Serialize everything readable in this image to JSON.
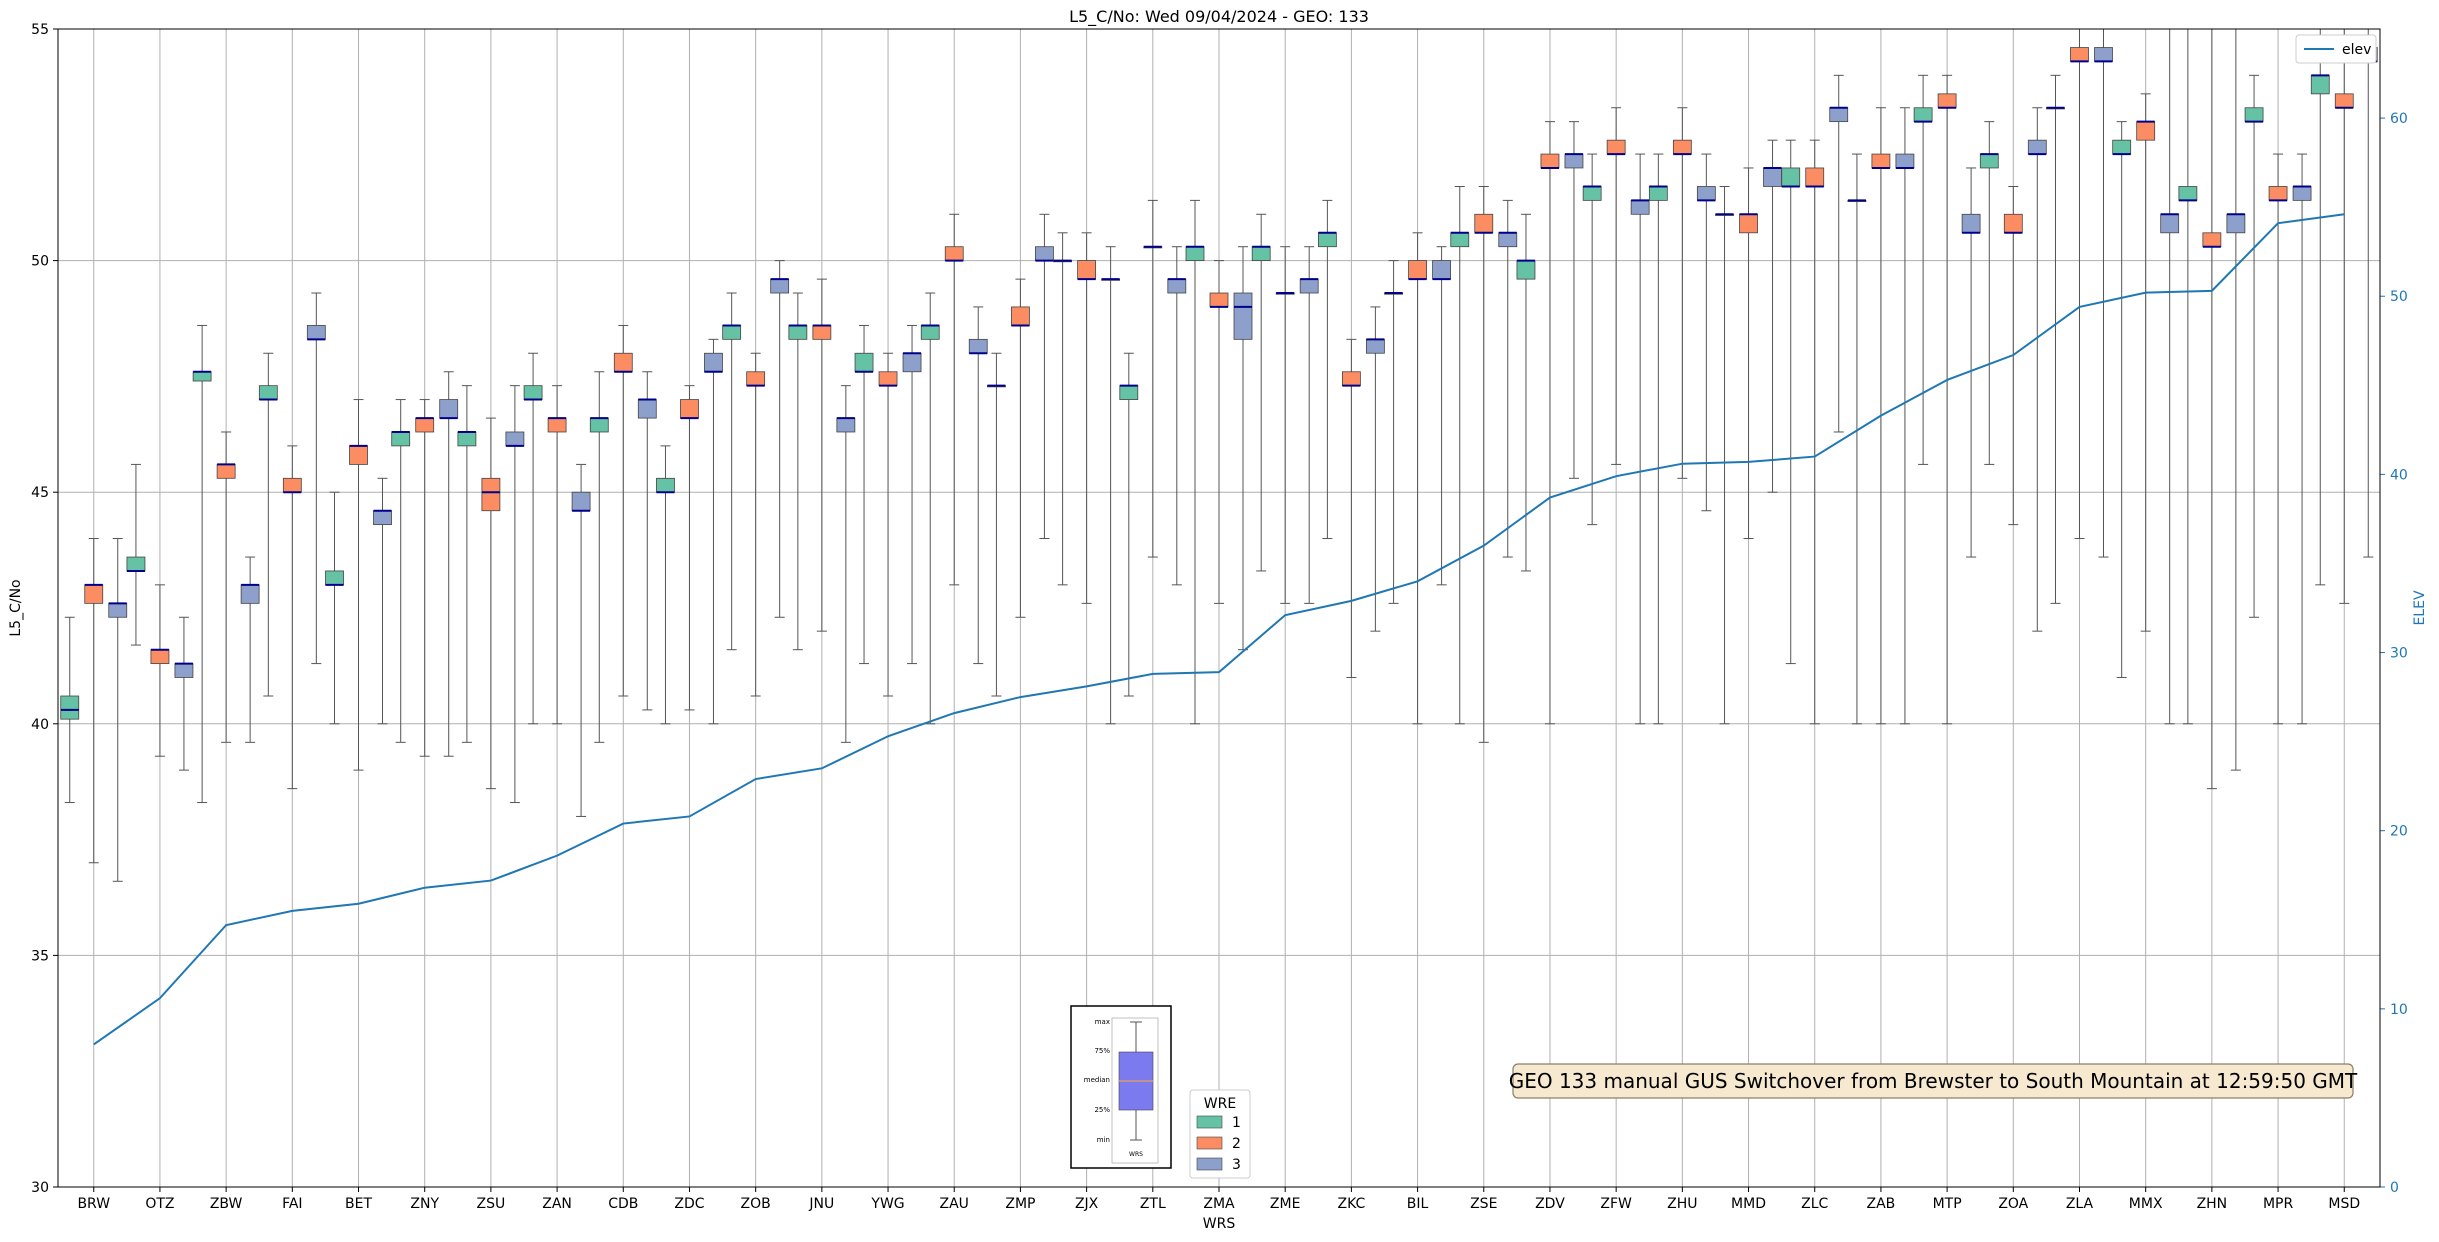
{
  "chart_data": {
    "type": "box",
    "title": "L5_C/No: Wed 09/04/2024 - GEO: 133",
    "xlabel": "WRS",
    "ylabel": "L5_C/No",
    "y2label": "ELEV",
    "ylim": [
      30,
      55
    ],
    "y2lim": [
      0,
      65
    ],
    "yticks": [
      "30",
      "35",
      "40",
      "45",
      "50",
      "55"
    ],
    "y2ticks": [
      "0",
      "10",
      "20",
      "30",
      "40",
      "50",
      "60"
    ],
    "grid": true,
    "categories": [
      "BRW",
      "OTZ",
      "ZBW",
      "FAI",
      "BET",
      "ZNY",
      "ZSU",
      "ZAN",
      "CDB",
      "ZDC",
      "ZOB",
      "JNU",
      "YWG",
      "ZAU",
      "ZMP",
      "ZJX",
      "ZTL",
      "ZMA",
      "ZME",
      "ZKC",
      "BIL",
      "ZSE",
      "ZDV",
      "ZFW",
      "ZHU",
      "MMD",
      "ZLC",
      "ZAB",
      "MTP",
      "ZOA",
      "ZLA",
      "MMX",
      "ZHN",
      "MPR",
      "MSD"
    ],
    "legend": {
      "title": "WRE",
      "placement": "bottom-center",
      "entries": [
        {
          "label": "1",
          "color": "#66c2a5"
        },
        {
          "label": "2",
          "color": "#fc8d62"
        },
        {
          "label": "3",
          "color": "#8da0cb"
        }
      ]
    },
    "elev_legend": {
      "label": "elev",
      "placement": "top-right",
      "color": "#1f77b4"
    },
    "elev": [
      8,
      10.6,
      14.7,
      15.5,
      15.9,
      16.8,
      17.2,
      18.6,
      20.4,
      20.8,
      22.9,
      23.5,
      25.3,
      26.6,
      27.5,
      28.1,
      28.8,
      28.9,
      32.1,
      32.9,
      34,
      36,
      38.7,
      39.9,
      40.6,
      40.7,
      41,
      43.3,
      45.3,
      46.7,
      49.4,
      50.2,
      50.3,
      54.1,
      54.6
    ],
    "series": [
      {
        "name": "1",
        "color": "#66c2a5",
        "boxes": [
          [
            0,
            38.3,
            40.1,
            40.3,
            40.6,
            42.3
          ],
          [
            1,
            41.7,
            43.3,
            43.3,
            43.6,
            45.6
          ],
          [
            2,
            38.3,
            47.4,
            47.6,
            47.6,
            48.6
          ],
          [
            3,
            40.6,
            47.0,
            47.0,
            47.3,
            48.0
          ],
          [
            4,
            40.0,
            43.0,
            43.0,
            43.3,
            45.0
          ],
          [
            5,
            39.6,
            46.0,
            46.3,
            46.3,
            47.0
          ],
          [
            6,
            39.6,
            46.0,
            46.3,
            46.3,
            47.3
          ],
          [
            7,
            40.0,
            47.0,
            47.0,
            47.3,
            48.0
          ],
          [
            8,
            39.6,
            46.3,
            46.6,
            46.6,
            47.6
          ],
          [
            9,
            40.0,
            45.0,
            45.0,
            45.3,
            46.0
          ],
          [
            10,
            41.6,
            48.3,
            48.6,
            48.6,
            49.3
          ],
          [
            11,
            41.6,
            48.3,
            48.6,
            48.6,
            49.3
          ],
          [
            12,
            41.3,
            47.6,
            47.6,
            48.0,
            48.6
          ],
          [
            13,
            40.0,
            48.3,
            48.6,
            48.6,
            49.3
          ],
          [
            14,
            40.6,
            47.3,
            47.3,
            47.3,
            48.0
          ],
          [
            15,
            43.0,
            50.0,
            50.0,
            50.0,
            50.6
          ],
          [
            16,
            40.6,
            47.0,
            47.3,
            47.3,
            48.0
          ],
          [
            17,
            40.0,
            50.0,
            50.3,
            50.3,
            51.3
          ],
          [
            18,
            43.3,
            50.0,
            50.3,
            50.3,
            51.0
          ],
          [
            19,
            44.0,
            50.3,
            50.6,
            50.6,
            51.3
          ],
          [
            20,
            42.6,
            49.3,
            49.3,
            49.3,
            50.0
          ],
          [
            21,
            40.0,
            50.3,
            50.6,
            50.6,
            51.6
          ],
          [
            22,
            43.3,
            49.6,
            50.0,
            50.0,
            51.0
          ],
          [
            23,
            44.3,
            51.3,
            51.6,
            51.6,
            52.3
          ],
          [
            24,
            40.0,
            51.3,
            51.6,
            51.6,
            52.3
          ],
          [
            25,
            40.0,
            51.0,
            51.0,
            51.0,
            51.6
          ],
          [
            26,
            41.3,
            51.6,
            51.6,
            52.0,
            52.6
          ],
          [
            27,
            40.0,
            51.3,
            51.3,
            51.3,
            52.3
          ],
          [
            28,
            45.6,
            53.0,
            53.0,
            53.3,
            54.0
          ],
          [
            29,
            45.6,
            52.0,
            52.3,
            52.3,
            53.0
          ],
          [
            30,
            42.6,
            53.3,
            53.3,
            53.3,
            54.0
          ],
          [
            31,
            41.0,
            52.3,
            52.3,
            52.6,
            53.0
          ],
          [
            32,
            40.0,
            51.3,
            51.3,
            51.6,
            55.0
          ],
          [
            33,
            42.3,
            53.0,
            53.0,
            53.3,
            54.0
          ],
          [
            34,
            43.0,
            53.6,
            54.0,
            54.0,
            55.0
          ]
        ]
      },
      {
        "name": "2",
        "color": "#fc8d62",
        "boxes": [
          [
            0,
            37.0,
            42.6,
            43.0,
            43.0,
            44.0
          ],
          [
            1,
            39.3,
            41.3,
            41.6,
            41.6,
            43.0
          ],
          [
            2,
            39.6,
            45.3,
            45.6,
            45.6,
            46.3
          ],
          [
            3,
            38.6,
            45.0,
            45.0,
            45.3,
            46.0
          ],
          [
            4,
            39.0,
            45.6,
            46.0,
            46.0,
            47.0
          ],
          [
            5,
            39.3,
            46.3,
            46.6,
            46.6,
            47.0
          ],
          [
            6,
            38.6,
            44.6,
            45.0,
            45.3,
            46.6
          ],
          [
            7,
            40.0,
            46.3,
            46.6,
            46.6,
            47.3
          ],
          [
            8,
            40.6,
            47.6,
            47.6,
            48.0,
            48.6
          ],
          [
            9,
            40.3,
            46.6,
            46.6,
            47.0,
            47.3
          ],
          [
            10,
            40.6,
            47.3,
            47.3,
            47.6,
            48.0
          ],
          [
            11,
            42.0,
            48.3,
            48.6,
            48.6,
            49.6
          ],
          [
            12,
            40.6,
            47.3,
            47.3,
            47.6,
            48.0
          ],
          [
            13,
            43.0,
            50.0,
            50.0,
            50.3,
            51.0
          ],
          [
            14,
            42.3,
            48.6,
            48.6,
            49.0,
            49.6
          ],
          [
            15,
            42.6,
            49.6,
            49.6,
            50.0,
            50.6
          ],
          [
            16,
            43.6,
            50.3,
            50.3,
            50.3,
            51.3
          ],
          [
            17,
            42.6,
            49.0,
            49.0,
            49.3,
            50.0
          ],
          [
            18,
            42.6,
            49.3,
            49.3,
            49.3,
            50.3
          ],
          [
            19,
            41.0,
            47.3,
            47.3,
            47.6,
            48.3
          ],
          [
            20,
            40.0,
            49.6,
            49.6,
            50.0,
            50.6
          ],
          [
            21,
            39.6,
            50.6,
            50.6,
            51.0,
            51.6
          ],
          [
            22,
            40.0,
            52.0,
            52.0,
            52.3,
            53.0
          ],
          [
            23,
            45.6,
            52.3,
            52.3,
            52.6,
            53.3
          ],
          [
            24,
            45.3,
            52.3,
            52.3,
            52.6,
            53.3
          ],
          [
            25,
            44.0,
            50.6,
            51.0,
            51.0,
            52.0
          ],
          [
            26,
            40.0,
            51.6,
            51.6,
            52.0,
            52.6
          ],
          [
            27,
            40.0,
            52.0,
            52.0,
            52.3,
            53.3
          ],
          [
            28,
            40.0,
            53.3,
            53.3,
            53.6,
            54.0
          ],
          [
            29,
            44.3,
            50.6,
            50.6,
            51.0,
            51.6
          ],
          [
            30,
            44.0,
            54.3,
            54.3,
            54.6,
            55.0
          ],
          [
            31,
            42.0,
            52.6,
            53.0,
            53.0,
            53.6
          ],
          [
            32,
            38.6,
            50.3,
            50.3,
            50.6,
            55.0
          ],
          [
            33,
            40.0,
            51.3,
            51.3,
            51.6,
            52.3
          ],
          [
            34,
            42.6,
            53.3,
            53.3,
            53.6,
            55.0
          ]
        ]
      },
      {
        "name": "3",
        "color": "#8da0cb",
        "boxes": [
          [
            0,
            36.6,
            42.3,
            42.6,
            42.6,
            44.0
          ],
          [
            1,
            39.0,
            41.0,
            41.3,
            41.3,
            42.3
          ],
          [
            2,
            39.6,
            42.6,
            43.0,
            43.0,
            43.6
          ],
          [
            3,
            41.3,
            48.3,
            48.3,
            48.6,
            49.3
          ],
          [
            4,
            40.0,
            44.3,
            44.6,
            44.6,
            45.3
          ],
          [
            5,
            39.3,
            46.6,
            46.6,
            47.0,
            47.6
          ],
          [
            6,
            38.3,
            46.0,
            46.0,
            46.3,
            47.3
          ],
          [
            7,
            38.0,
            44.6,
            44.6,
            45.0,
            45.6
          ],
          [
            8,
            40.3,
            46.6,
            47.0,
            47.0,
            47.6
          ],
          [
            9,
            40.0,
            47.6,
            47.6,
            48.0,
            48.3
          ],
          [
            10,
            42.3,
            49.3,
            49.6,
            49.6,
            50.0
          ],
          [
            11,
            39.6,
            46.3,
            46.6,
            46.6,
            47.3
          ],
          [
            12,
            41.3,
            47.6,
            48.0,
            48.0,
            48.6
          ],
          [
            13,
            41.3,
            48.0,
            48.0,
            48.3,
            49.0
          ],
          [
            14,
            44.0,
            50.0,
            50.0,
            50.3,
            51.0
          ],
          [
            15,
            40.0,
            49.6,
            49.6,
            49.6,
            50.3
          ],
          [
            16,
            43.0,
            49.3,
            49.6,
            49.6,
            50.3
          ],
          [
            17,
            41.6,
            48.3,
            49.0,
            49.3,
            50.3
          ],
          [
            18,
            42.6,
            49.3,
            49.6,
            49.6,
            50.3
          ],
          [
            19,
            42.0,
            48.0,
            48.3,
            48.3,
            49.0
          ],
          [
            20,
            43.0,
            49.6,
            49.6,
            50.0,
            50.3
          ],
          [
            21,
            43.6,
            50.3,
            50.6,
            50.6,
            51.3
          ],
          [
            22,
            45.3,
            52.0,
            52.3,
            52.3,
            53.0
          ],
          [
            23,
            40.0,
            51.0,
            51.3,
            51.3,
            52.3
          ],
          [
            24,
            44.6,
            51.3,
            51.3,
            51.6,
            52.3
          ],
          [
            25,
            45.0,
            51.6,
            52.0,
            52.0,
            52.6
          ],
          [
            26,
            46.3,
            53.0,
            53.3,
            53.3,
            54.0
          ],
          [
            27,
            40.0,
            52.0,
            52.0,
            52.3,
            53.3
          ],
          [
            28,
            43.6,
            50.6,
            50.6,
            51.0,
            52.0
          ],
          [
            29,
            42.0,
            52.3,
            52.3,
            52.6,
            53.3
          ],
          [
            30,
            43.6,
            54.3,
            54.3,
            54.6,
            55.0
          ],
          [
            31,
            40.0,
            50.6,
            51.0,
            51.0,
            55.0
          ],
          [
            32,
            39.0,
            50.6,
            51.0,
            51.0,
            55.0
          ],
          [
            33,
            40.0,
            51.3,
            51.6,
            51.6,
            52.3
          ],
          [
            34,
            43.6,
            54.3,
            54.3,
            54.6,
            55.0
          ]
        ]
      }
    ],
    "annotation": "GEO 133 manual GUS Switchover from Brewster to South Mountain at 12:59:50 GMT",
    "inset_key": {
      "labels": [
        "max",
        "75%",
        "median",
        "25%",
        "min"
      ],
      "xlabel": "WRS",
      "box_color": "#7b7bef"
    }
  }
}
